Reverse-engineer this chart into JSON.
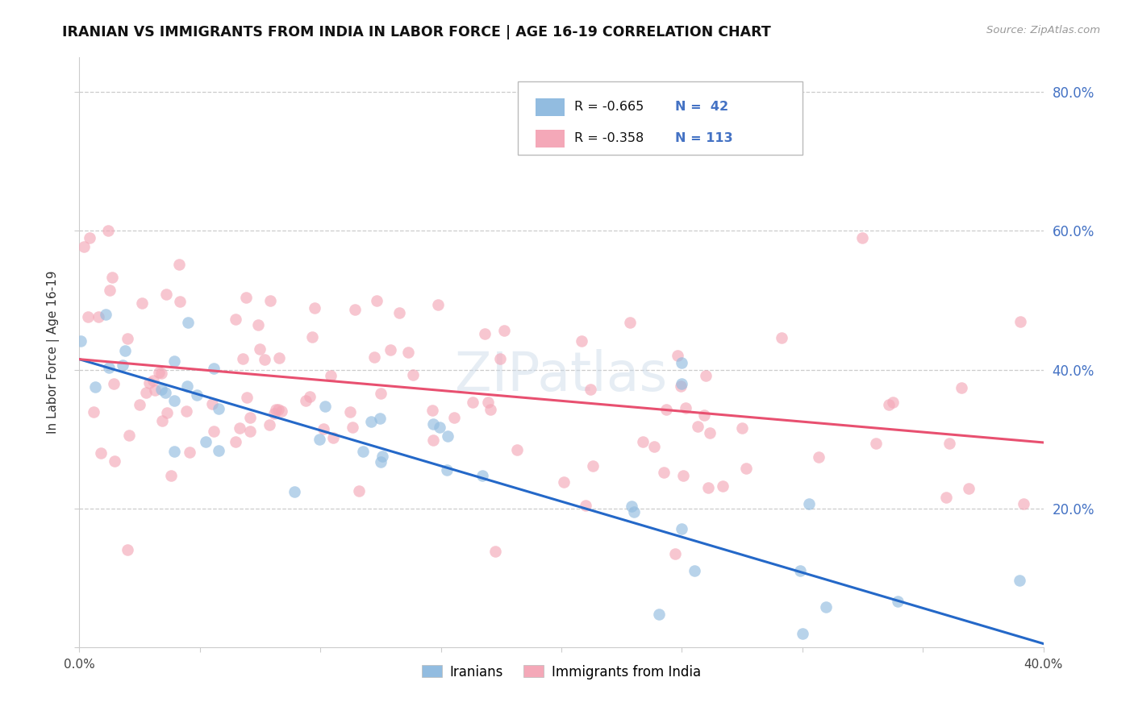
{
  "title": "IRANIAN VS IMMIGRANTS FROM INDIA IN LABOR FORCE | AGE 16-19 CORRELATION CHART",
  "source": "Source: ZipAtlas.com",
  "ylabel": "In Labor Force | Age 16-19",
  "xlim": [
    0.0,
    0.4
  ],
  "ylim": [
    0.0,
    0.85
  ],
  "watermark": "ZIPatlas",
  "iranian_color": "#92bce0",
  "india_color": "#f4a8b8",
  "trendline_iranian_color": "#2468c8",
  "trendline_india_color": "#e85070",
  "legend_R1": "R = -0.665",
  "legend_N1": "N =  42",
  "legend_R2": "R = -0.358",
  "legend_N2": "N = 113",
  "legend_color_blue": "#4472c4",
  "legend_text_R_color": "#4472c4",
  "legend_text_N_color": "#4472c4",
  "right_tick_color": "#4472c4",
  "bottom_legend_label1": "Iranians",
  "bottom_legend_label2": "Immigrants from India",
  "iran_trend_x0": 0.0,
  "iran_trend_y0": 0.415,
  "iran_trend_x1": 0.4,
  "iran_trend_y1": 0.005,
  "india_trend_x0": 0.0,
  "india_trend_y0": 0.415,
  "india_trend_x1": 0.4,
  "india_trend_y1": 0.295
}
